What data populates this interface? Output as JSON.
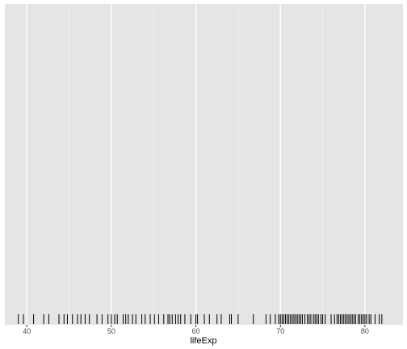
{
  "chart_data": {
    "type": "rug",
    "title": "",
    "xlabel": "lifeExp",
    "ylabel": "",
    "xlim": [
      37.4,
      84.5
    ],
    "x_ticks": [
      40,
      50,
      60,
      70,
      80
    ],
    "x_minor_ticks": [
      45,
      55,
      65,
      75
    ],
    "grid": true,
    "legend": "none",
    "colors": {
      "panel_bg": "#e5e5e5",
      "grid_major": "#ffffff",
      "grid_minor": "#f2f2f2",
      "rug": "#000000"
    },
    "values": [
      39.0,
      39.6,
      40.8,
      42.0,
      42.6,
      43.8,
      44.4,
      44.8,
      45.4,
      46.0,
      46.4,
      46.9,
      47.4,
      48.3,
      48.9,
      49.6,
      50.0,
      50.4,
      50.7,
      51.4,
      51.7,
      52.0,
      52.5,
      52.9,
      53.6,
      54.0,
      54.6,
      55.1,
      55.6,
      56.2,
      56.7,
      56.9,
      57.2,
      57.6,
      57.9,
      58.2,
      58.7,
      59.4,
      60.0,
      60.2,
      61.0,
      61.6,
      62.5,
      63.0,
      64.0,
      64.2,
      65.0,
      66.8,
      68.3,
      68.8,
      69.4,
      69.8,
      70.0,
      70.2,
      70.4,
      70.6,
      70.8,
      71.0,
      71.2,
      71.4,
      71.6,
      71.8,
      72.0,
      72.2,
      72.4,
      72.6,
      72.9,
      73.2,
      73.4,
      73.6,
      73.9,
      74.1,
      74.3,
      74.5,
      74.8,
      75.0,
      75.3,
      76.0,
      76.4,
      76.7,
      76.9,
      77.1,
      77.3,
      77.5,
      77.7,
      77.9,
      78.1,
      78.3,
      78.5,
      78.7,
      78.9,
      79.2,
      79.4,
      79.6,
      79.8,
      80.0,
      80.2,
      80.5,
      80.7,
      81.2,
      81.7,
      82.0
    ]
  }
}
